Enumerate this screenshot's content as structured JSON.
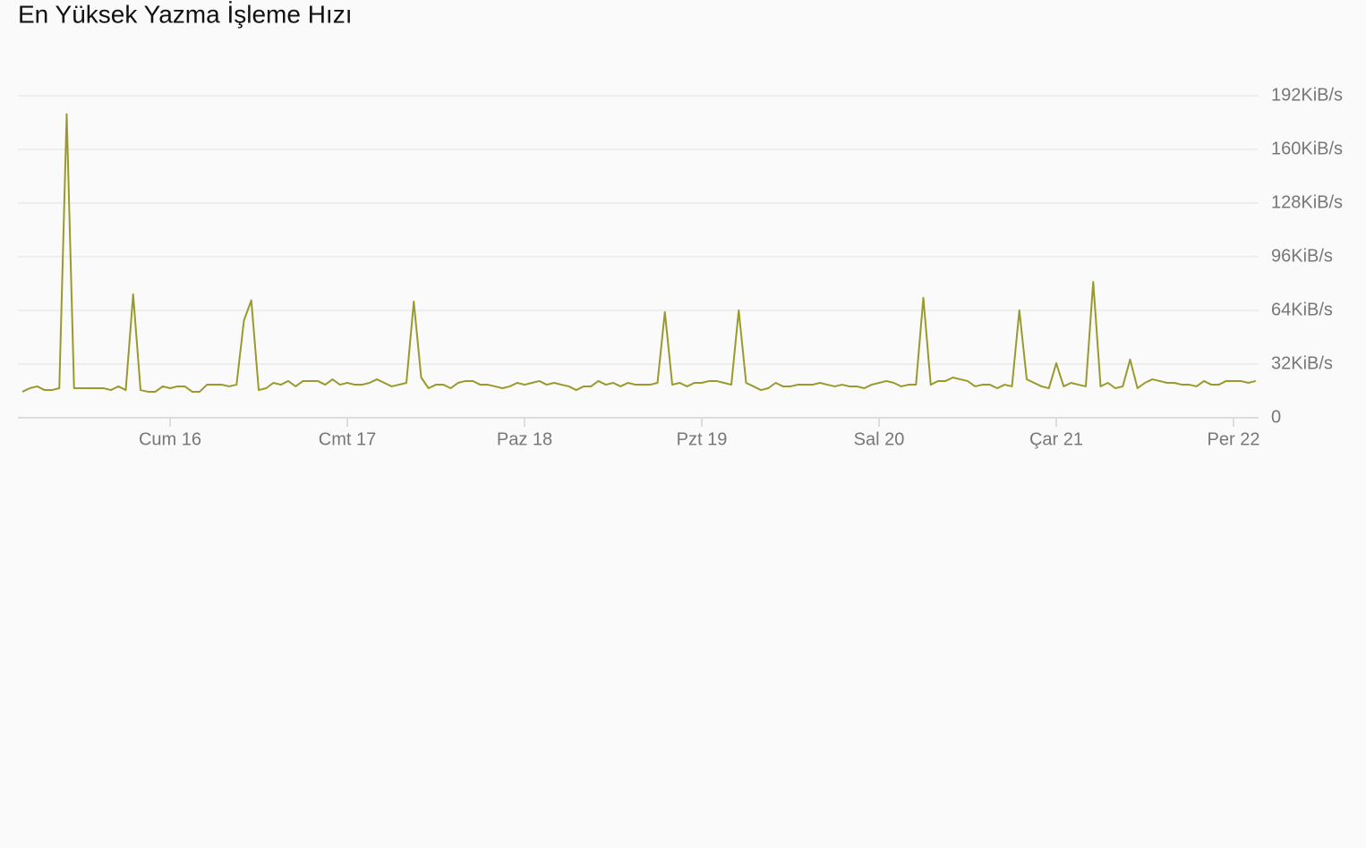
{
  "chart_data": {
    "type": "line",
    "title": "En Yüksek Yazma İşleme Hızı",
    "categories": [
      null,
      null,
      null,
      null,
      null,
      null,
      null,
      null,
      null,
      null,
      null,
      null,
      null,
      null,
      null,
      null,
      null,
      null,
      null,
      null,
      "Cum 16",
      null,
      null,
      null,
      null,
      null,
      null,
      null,
      null,
      null,
      null,
      null,
      null,
      null,
      null,
      null,
      null,
      null,
      null,
      null,
      null,
      null,
      null,
      null,
      "Cmt 17",
      null,
      null,
      null,
      null,
      null,
      null,
      null,
      null,
      null,
      null,
      null,
      null,
      null,
      null,
      null,
      null,
      null,
      null,
      null,
      null,
      null,
      null,
      null,
      "Paz 18",
      null,
      null,
      null,
      null,
      null,
      null,
      null,
      null,
      null,
      null,
      null,
      null,
      null,
      null,
      null,
      null,
      null,
      null,
      null,
      null,
      null,
      null,
      null,
      "Pzt 19",
      null,
      null,
      null,
      null,
      null,
      null,
      null,
      null,
      null,
      null,
      null,
      null,
      null,
      null,
      null,
      null,
      null,
      null,
      null,
      null,
      null,
      null,
      null,
      "Sal 20",
      null,
      null,
      null,
      null,
      null,
      null,
      null,
      null,
      null,
      null,
      null,
      null,
      null,
      null,
      null,
      null,
      null,
      null,
      null,
      null,
      null,
      null,
      null,
      "Çar 21",
      null,
      null,
      null,
      null,
      null,
      null,
      null,
      null,
      null,
      null,
      null,
      null,
      null,
      null,
      null,
      null,
      null,
      null,
      null,
      null,
      null,
      null,
      null,
      "Per 22",
      null,
      null,
      null
    ],
    "values": [
      15.5,
      17.6,
      18.7,
      16.5,
      16.5,
      17.6,
      181,
      17.6,
      17.6,
      17.6,
      17.6,
      17.6,
      16.5,
      18.7,
      16.5,
      73.6,
      16.5,
      15.5,
      15.5,
      18.7,
      17.6,
      18.7,
      18.7,
      15.5,
      15.5,
      19.7,
      19.7,
      19.7,
      18.7,
      19.7,
      58,
      70,
      16.5,
      17.6,
      20.8,
      19.7,
      21.9,
      18.7,
      21.9,
      21.9,
      21.9,
      19.7,
      22.9,
      19.7,
      20.8,
      19.7,
      19.7,
      20.8,
      22.9,
      20.8,
      18.7,
      19.7,
      20.8,
      69.3,
      24,
      17.6,
      19.7,
      19.7,
      17.6,
      20.8,
      21.9,
      21.9,
      19.7,
      19.7,
      18.7,
      17.6,
      18.7,
      20.8,
      19.7,
      20.8,
      21.9,
      19.7,
      20.8,
      19.7,
      18.7,
      16.5,
      18.7,
      18.7,
      21.9,
      19.7,
      20.8,
      18.7,
      20.8,
      19.7,
      19.7,
      19.7,
      20.8,
      63,
      19.7,
      20.8,
      18.7,
      20.8,
      20.8,
      21.9,
      21.9,
      20.8,
      19.7,
      64,
      20.8,
      18.7,
      16.5,
      17.6,
      20.8,
      18.7,
      18.7,
      19.7,
      19.7,
      19.7,
      20.8,
      19.7,
      18.7,
      19.7,
      18.7,
      18.7,
      17.6,
      19.7,
      20.8,
      21.9,
      20.8,
      18.7,
      19.7,
      19.7,
      71.5,
      19.7,
      21.9,
      21.9,
      24,
      22.9,
      21.9,
      18.7,
      19.7,
      19.7,
      17.6,
      19.7,
      18.7,
      64,
      22.9,
      20.8,
      18.7,
      17.6,
      32.5,
      18.7,
      20.8,
      19.7,
      18.7,
      81,
      18.7,
      20.8,
      17.6,
      18.7,
      34.7,
      17.6,
      20.8,
      22.9,
      21.9,
      20.8,
      20.8,
      19.7,
      19.7,
      18.7,
      21.9,
      19.7,
      19.7,
      21.9,
      21.9,
      21.9,
      20.8,
      21.9
    ],
    "color": "#9a9a2c",
    "ylim": [
      0,
      192
    ],
    "yticks": [
      0,
      {
        "value": 32,
        "label": "32KiB/s"
      },
      {
        "value": 64,
        "label": "64KiB/s"
      },
      {
        "value": 96,
        "label": "96KiB/s"
      },
      {
        "value": 128,
        "label": "128KiB/s"
      },
      {
        "value": 160,
        "label": "160KiB/s"
      },
      {
        "value": 192,
        "label": "192KiB/s"
      }
    ],
    "grid": true
  }
}
